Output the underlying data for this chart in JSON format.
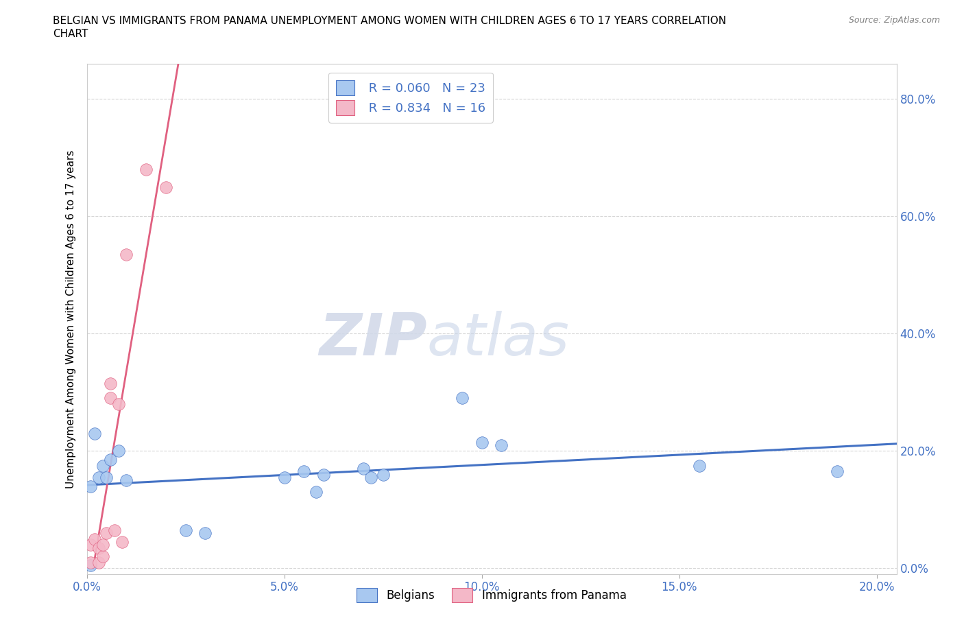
{
  "title_line1": "BELGIAN VS IMMIGRANTS FROM PANAMA UNEMPLOYMENT AMONG WOMEN WITH CHILDREN AGES 6 TO 17 YEARS CORRELATION",
  "title_line2": "CHART",
  "source": "Source: ZipAtlas.com",
  "ylabel": "Unemployment Among Women with Children Ages 6 to 17 years",
  "xlabel_ticks": [
    "0.0%",
    "5.0%",
    "10.0%",
    "15.0%",
    "20.0%"
  ],
  "ylabel_ticks": [
    "0.0%",
    "20.0%",
    "40.0%",
    "60.0%",
    "80.0%"
  ],
  "xlim": [
    0.0,
    0.205
  ],
  "ylim": [
    -0.01,
    0.86
  ],
  "belgian_x": [
    0.001,
    0.001,
    0.002,
    0.003,
    0.004,
    0.005,
    0.006,
    0.008,
    0.01,
    0.025,
    0.03,
    0.05,
    0.055,
    0.058,
    0.06,
    0.07,
    0.072,
    0.075,
    0.095,
    0.1,
    0.105,
    0.155,
    0.19
  ],
  "belgian_y": [
    0.005,
    0.14,
    0.23,
    0.155,
    0.175,
    0.155,
    0.185,
    0.2,
    0.15,
    0.065,
    0.06,
    0.155,
    0.165,
    0.13,
    0.16,
    0.17,
    0.155,
    0.16,
    0.29,
    0.215,
    0.21,
    0.175,
    0.165
  ],
  "panama_x": [
    0.001,
    0.001,
    0.002,
    0.003,
    0.003,
    0.004,
    0.004,
    0.005,
    0.006,
    0.006,
    0.007,
    0.008,
    0.009,
    0.01,
    0.015,
    0.02
  ],
  "panama_y": [
    0.01,
    0.04,
    0.05,
    0.01,
    0.035,
    0.02,
    0.04,
    0.06,
    0.29,
    0.315,
    0.065,
    0.28,
    0.045,
    0.535,
    0.68,
    0.65
  ],
  "belgian_R": "0.060",
  "belgian_N": "23",
  "panama_R": "0.834",
  "panama_N": "16",
  "belgian_color": "#a8c8f0",
  "panama_color": "#f4b8c8",
  "belgian_line_color": "#4472c4",
  "panama_line_color": "#e06080",
  "dot_size": 160,
  "watermark_zip": "ZIP",
  "watermark_atlas": "atlas",
  "background_color": "#ffffff",
  "grid_color": "#cccccc"
}
